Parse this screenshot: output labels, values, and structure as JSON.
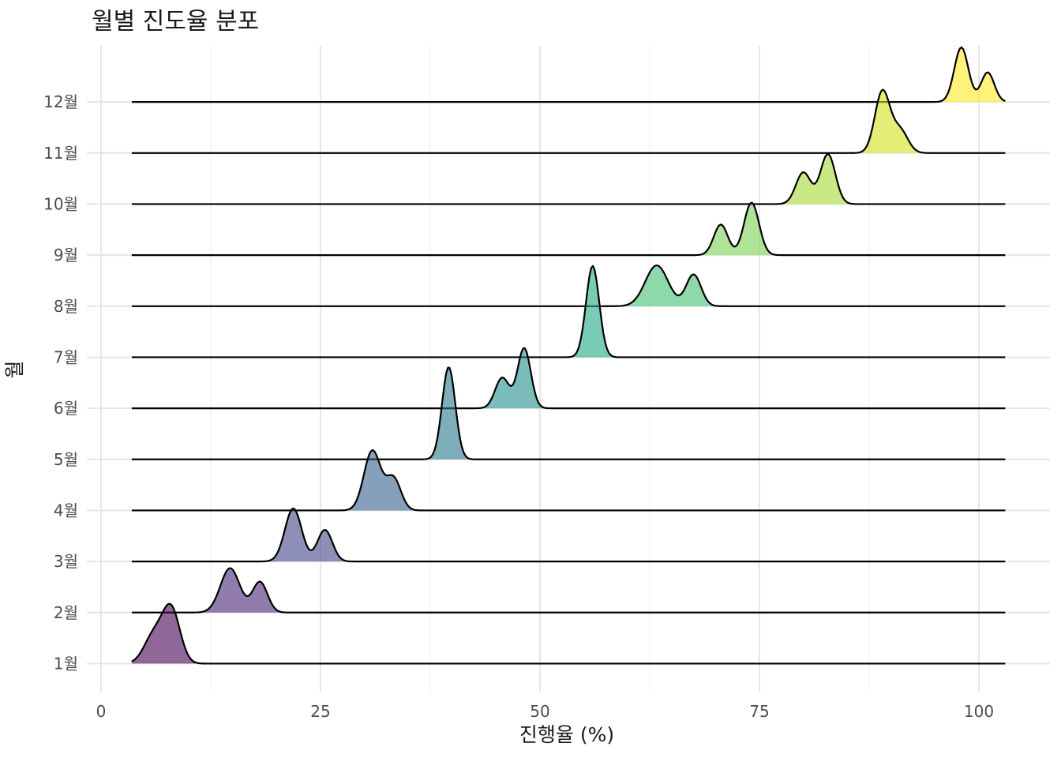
{
  "chart_data": {
    "type": "ridgeline",
    "title": "월별 진도율 분포",
    "xlabel": "진행율 (%)",
    "ylabel": "월",
    "xlim": [
      0,
      102
    ],
    "x_ticks": [
      0,
      25,
      50,
      75,
      100
    ],
    "x_tick_labels": [
      "0",
      "25",
      "50",
      "75",
      "100"
    ],
    "y_range": [
      -0.55,
      12.1
    ],
    "density_range": [
      3.5,
      103
    ],
    "fill_alpha": 0.6,
    "palette": "viridis",
    "categories": [
      "1월",
      "2월",
      "3월",
      "4월",
      "5월",
      "6월",
      "7월",
      "8월",
      "9월",
      "10월",
      "11월",
      "12월"
    ],
    "series": [
      {
        "name": "1월",
        "color": "#440154",
        "peaks": [
          {
            "mu": 6.0,
            "sigma": 1.1,
            "h": 0.55
          },
          {
            "mu": 8.0,
            "sigma": 1.0,
            "h": 1.05
          }
        ]
      },
      {
        "name": "2월",
        "color": "#482576",
        "peaks": [
          {
            "mu": 14.7,
            "sigma": 1.1,
            "h": 0.87
          },
          {
            "mu": 18.1,
            "sigma": 0.85,
            "h": 0.6
          }
        ]
      },
      {
        "name": "3월",
        "color": "#414487",
        "peaks": [
          {
            "mu": 21.9,
            "sigma": 0.95,
            "h": 1.04
          },
          {
            "mu": 25.5,
            "sigma": 0.85,
            "h": 0.62
          }
        ]
      },
      {
        "name": "4월",
        "color": "#35608D",
        "peaks": [
          {
            "mu": 30.9,
            "sigma": 0.95,
            "h": 1.17
          },
          {
            "mu": 33.3,
            "sigma": 0.85,
            "h": 0.63
          }
        ]
      },
      {
        "name": "5월",
        "color": "#2A788E",
        "peaks": [
          {
            "mu": 39.6,
            "sigma": 0.75,
            "h": 1.81
          }
        ]
      },
      {
        "name": "6월",
        "color": "#21908C",
        "peaks": [
          {
            "mu": 45.7,
            "sigma": 0.8,
            "h": 0.6
          },
          {
            "mu": 48.2,
            "sigma": 0.75,
            "h": 1.18
          }
        ]
      },
      {
        "name": "7월",
        "color": "#22A884",
        "peaks": [
          {
            "mu": 56.0,
            "sigma": 0.75,
            "h": 1.79
          }
        ]
      },
      {
        "name": "8월",
        "color": "#43BF71",
        "peaks": [
          {
            "mu": 63.3,
            "sigma": 1.3,
            "h": 0.8
          },
          {
            "mu": 67.5,
            "sigma": 0.85,
            "h": 0.62
          }
        ]
      },
      {
        "name": "9월",
        "color": "#7AD151",
        "peaks": [
          {
            "mu": 70.6,
            "sigma": 0.8,
            "h": 0.6
          },
          {
            "mu": 74.1,
            "sigma": 0.85,
            "h": 1.03
          }
        ]
      },
      {
        "name": "10월",
        "color": "#A5DB36",
        "peaks": [
          {
            "mu": 80.0,
            "sigma": 0.85,
            "h": 0.62
          },
          {
            "mu": 82.8,
            "sigma": 0.85,
            "h": 0.98
          }
        ]
      },
      {
        "name": "11월",
        "color": "#D2E21B",
        "peaks": [
          {
            "mu": 89.0,
            "sigma": 0.85,
            "h": 1.2
          },
          {
            "mu": 91.0,
            "sigma": 0.9,
            "h": 0.45
          }
        ]
      },
      {
        "name": "12월",
        "color": "#FDE725",
        "peaks": [
          {
            "mu": 98.0,
            "sigma": 0.8,
            "h": 1.07
          },
          {
            "mu": 101.0,
            "sigma": 0.75,
            "h": 0.58
          }
        ]
      }
    ]
  }
}
